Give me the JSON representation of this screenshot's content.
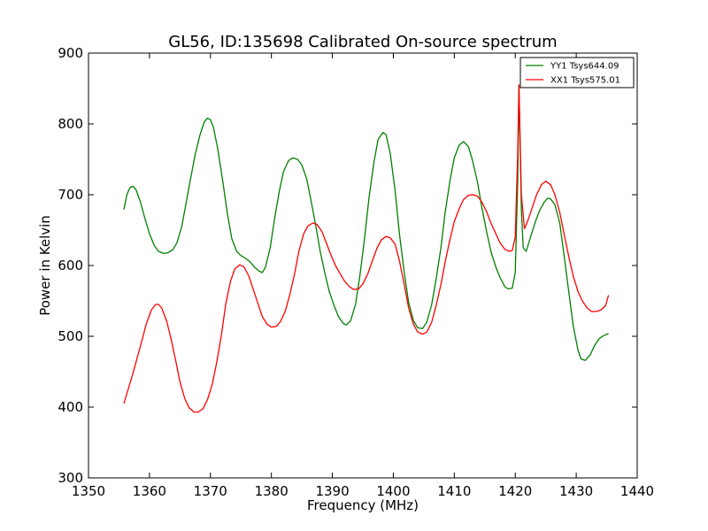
{
  "chart_data": {
    "type": "line",
    "title": "GL56, ID:135698 Calibrated On-source spectrum",
    "xlabel": "Frequency (MHz)",
    "ylabel": "Power in Kelvin",
    "xlim": [
      1350,
      1440
    ],
    "ylim": [
      300,
      900
    ],
    "xticks": [
      1350,
      1360,
      1370,
      1380,
      1390,
      1400,
      1410,
      1420,
      1430,
      1440
    ],
    "yticks": [
      300,
      400,
      500,
      600,
      700,
      800,
      900
    ],
    "grid": false,
    "legend_position": "top-right",
    "series": [
      {
        "name": "YY1 Tsys644.09",
        "color": "#008000",
        "points": [
          [
            1355.8,
            679
          ],
          [
            1356.3,
            700
          ],
          [
            1356.8,
            710
          ],
          [
            1357.3,
            712
          ],
          [
            1357.8,
            707
          ],
          [
            1358.5,
            690
          ],
          [
            1359.2,
            668
          ],
          [
            1360.0,
            645
          ],
          [
            1360.8,
            628
          ],
          [
            1361.5,
            620
          ],
          [
            1362.3,
            617
          ],
          [
            1363.0,
            618
          ],
          [
            1363.8,
            622
          ],
          [
            1364.5,
            632
          ],
          [
            1365.3,
            655
          ],
          [
            1366.0,
            688
          ],
          [
            1366.8,
            725
          ],
          [
            1367.5,
            757
          ],
          [
            1368.3,
            785
          ],
          [
            1369.0,
            803
          ],
          [
            1369.5,
            808
          ],
          [
            1370.0,
            806
          ],
          [
            1370.5,
            795
          ],
          [
            1371.2,
            765
          ],
          [
            1372.0,
            720
          ],
          [
            1372.8,
            672
          ],
          [
            1373.5,
            638
          ],
          [
            1374.3,
            620
          ],
          [
            1375.0,
            614
          ],
          [
            1375.8,
            610
          ],
          [
            1376.5,
            605
          ],
          [
            1377.3,
            597
          ],
          [
            1378.0,
            592
          ],
          [
            1378.5,
            590
          ],
          [
            1379.0,
            597
          ],
          [
            1379.8,
            625
          ],
          [
            1380.5,
            665
          ],
          [
            1381.3,
            705
          ],
          [
            1382.0,
            733
          ],
          [
            1382.8,
            748
          ],
          [
            1383.5,
            752
          ],
          [
            1384.3,
            750
          ],
          [
            1385.0,
            742
          ],
          [
            1385.8,
            722
          ],
          [
            1386.5,
            692
          ],
          [
            1387.3,
            655
          ],
          [
            1388.0,
            620
          ],
          [
            1388.8,
            588
          ],
          [
            1389.5,
            563
          ],
          [
            1390.3,
            543
          ],
          [
            1391.0,
            528
          ],
          [
            1391.8,
            518
          ],
          [
            1392.3,
            516
          ],
          [
            1393.0,
            522
          ],
          [
            1393.8,
            545
          ],
          [
            1394.5,
            585
          ],
          [
            1395.3,
            640
          ],
          [
            1396.0,
            695
          ],
          [
            1396.8,
            745
          ],
          [
            1397.5,
            778
          ],
          [
            1398.3,
            788
          ],
          [
            1398.8,
            785
          ],
          [
            1399.5,
            758
          ],
          [
            1400.3,
            705
          ],
          [
            1401.0,
            645
          ],
          [
            1401.8,
            590
          ],
          [
            1402.5,
            548
          ],
          [
            1403.3,
            522
          ],
          [
            1404.0,
            512
          ],
          [
            1404.8,
            511
          ],
          [
            1405.5,
            520
          ],
          [
            1406.3,
            545
          ],
          [
            1407.0,
            580
          ],
          [
            1407.8,
            625
          ],
          [
            1408.5,
            675
          ],
          [
            1409.3,
            720
          ],
          [
            1410.0,
            752
          ],
          [
            1410.8,
            770
          ],
          [
            1411.5,
            775
          ],
          [
            1412.3,
            768
          ],
          [
            1413.0,
            748
          ],
          [
            1413.8,
            718
          ],
          [
            1414.5,
            683
          ],
          [
            1415.3,
            648
          ],
          [
            1416.0,
            620
          ],
          [
            1416.8,
            598
          ],
          [
            1417.5,
            583
          ],
          [
            1418.3,
            570
          ],
          [
            1418.8,
            567
          ],
          [
            1419.5,
            568
          ],
          [
            1420.0,
            590
          ],
          [
            1420.4,
            720
          ],
          [
            1420.6,
            855
          ],
          [
            1421.0,
            680
          ],
          [
            1421.3,
            625
          ],
          [
            1421.8,
            620
          ],
          [
            1422.5,
            640
          ],
          [
            1423.3,
            662
          ],
          [
            1424.0,
            678
          ],
          [
            1424.8,
            690
          ],
          [
            1425.3,
            695
          ],
          [
            1425.8,
            694
          ],
          [
            1426.5,
            686
          ],
          [
            1427.3,
            660
          ],
          [
            1428.0,
            615
          ],
          [
            1428.8,
            562
          ],
          [
            1429.5,
            515
          ],
          [
            1430.3,
            480
          ],
          [
            1430.8,
            468
          ],
          [
            1431.5,
            466
          ],
          [
            1432.3,
            474
          ],
          [
            1433.0,
            487
          ],
          [
            1433.8,
            497
          ],
          [
            1434.5,
            501
          ],
          [
            1435.3,
            504
          ]
        ]
      },
      {
        "name": "XX1 Tsys575.01",
        "color": "#ff0000",
        "points": [
          [
            1355.8,
            405
          ],
          [
            1356.5,
            425
          ],
          [
            1357.3,
            448
          ],
          [
            1358.0,
            470
          ],
          [
            1358.8,
            495
          ],
          [
            1359.5,
            518
          ],
          [
            1360.3,
            537
          ],
          [
            1361.0,
            545
          ],
          [
            1361.5,
            545
          ],
          [
            1362.0,
            540
          ],
          [
            1362.8,
            522
          ],
          [
            1363.5,
            498
          ],
          [
            1364.3,
            466
          ],
          [
            1365.0,
            436
          ],
          [
            1365.8,
            412
          ],
          [
            1366.5,
            399
          ],
          [
            1367.3,
            393
          ],
          [
            1368.0,
            393
          ],
          [
            1368.8,
            398
          ],
          [
            1369.5,
            410
          ],
          [
            1370.3,
            432
          ],
          [
            1371.0,
            462
          ],
          [
            1371.8,
            502
          ],
          [
            1372.5,
            545
          ],
          [
            1373.3,
            578
          ],
          [
            1374.0,
            595
          ],
          [
            1374.8,
            601
          ],
          [
            1375.5,
            598
          ],
          [
            1376.3,
            585
          ],
          [
            1377.0,
            567
          ],
          [
            1377.8,
            546
          ],
          [
            1378.5,
            528
          ],
          [
            1379.3,
            517
          ],
          [
            1380.0,
            513
          ],
          [
            1380.8,
            514
          ],
          [
            1381.5,
            521
          ],
          [
            1382.3,
            536
          ],
          [
            1383.0,
            558
          ],
          [
            1383.8,
            588
          ],
          [
            1384.5,
            620
          ],
          [
            1385.3,
            645
          ],
          [
            1386.0,
            656
          ],
          [
            1386.8,
            660
          ],
          [
            1387.5,
            658
          ],
          [
            1388.3,
            648
          ],
          [
            1389.0,
            632
          ],
          [
            1389.8,
            614
          ],
          [
            1390.5,
            600
          ],
          [
            1391.3,
            588
          ],
          [
            1392.0,
            578
          ],
          [
            1392.8,
            570
          ],
          [
            1393.5,
            566
          ],
          [
            1394.3,
            567
          ],
          [
            1395.0,
            574
          ],
          [
            1395.8,
            588
          ],
          [
            1396.5,
            605
          ],
          [
            1397.3,
            624
          ],
          [
            1398.0,
            636
          ],
          [
            1398.8,
            641
          ],
          [
            1399.5,
            639
          ],
          [
            1400.3,
            630
          ],
          [
            1401.0,
            607
          ],
          [
            1401.8,
            573
          ],
          [
            1402.5,
            540
          ],
          [
            1403.3,
            517
          ],
          [
            1404.0,
            506
          ],
          [
            1404.8,
            503
          ],
          [
            1405.5,
            506
          ],
          [
            1406.3,
            520
          ],
          [
            1407.0,
            543
          ],
          [
            1407.8,
            573
          ],
          [
            1408.5,
            605
          ],
          [
            1409.3,
            637
          ],
          [
            1410.0,
            662
          ],
          [
            1410.8,
            680
          ],
          [
            1411.5,
            693
          ],
          [
            1412.3,
            699
          ],
          [
            1413.0,
            700
          ],
          [
            1413.8,
            698
          ],
          [
            1414.5,
            690
          ],
          [
            1415.3,
            676
          ],
          [
            1416.0,
            660
          ],
          [
            1416.8,
            645
          ],
          [
            1417.5,
            632
          ],
          [
            1418.3,
            623
          ],
          [
            1419.0,
            620
          ],
          [
            1419.5,
            621
          ],
          [
            1420.0,
            640
          ],
          [
            1420.4,
            760
          ],
          [
            1420.6,
            855
          ],
          [
            1421.0,
            700
          ],
          [
            1421.5,
            652
          ],
          [
            1422.0,
            662
          ],
          [
            1422.8,
            682
          ],
          [
            1423.5,
            700
          ],
          [
            1424.3,
            714
          ],
          [
            1425.0,
            719
          ],
          [
            1425.8,
            714
          ],
          [
            1426.5,
            700
          ],
          [
            1427.3,
            675
          ],
          [
            1428.0,
            645
          ],
          [
            1428.8,
            612
          ],
          [
            1429.5,
            585
          ],
          [
            1430.3,
            563
          ],
          [
            1431.0,
            550
          ],
          [
            1431.8,
            540
          ],
          [
            1432.5,
            535
          ],
          [
            1433.3,
            535
          ],
          [
            1434.0,
            537
          ],
          [
            1434.8,
            543
          ],
          [
            1435.3,
            558
          ]
        ]
      }
    ]
  }
}
